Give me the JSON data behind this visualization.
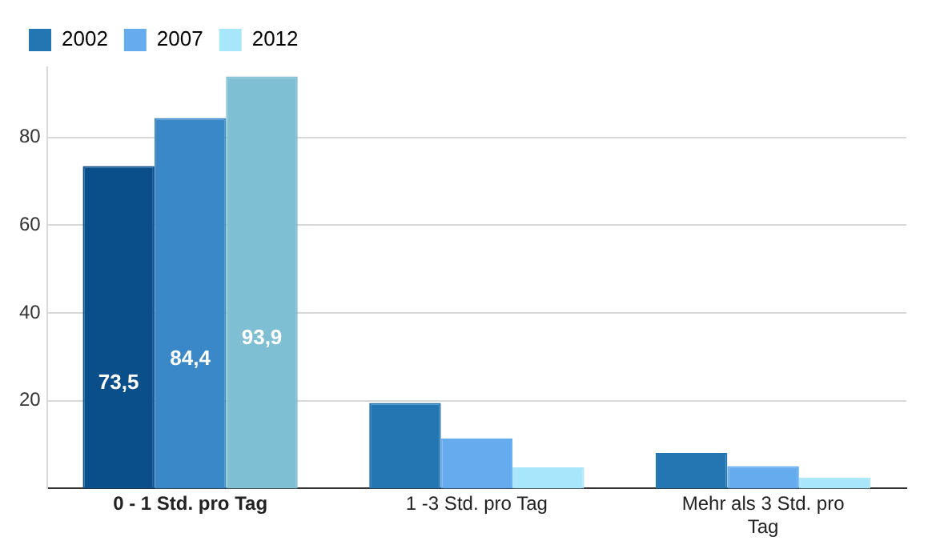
{
  "chart_data": {
    "type": "bar",
    "categories": [
      "0 - 1 Std. pro Tag",
      "1 -3 Std. pro Tag",
      "Mehr als 3 Std. pro Tag"
    ],
    "series": [
      {
        "name": "2002",
        "color": "#2476b2",
        "colors": [
          "#0b4f8a",
          "#2476b2",
          "#2476b2"
        ],
        "values": [
          73.5,
          19.5,
          8.1
        ],
        "value_labels": [
          "73,5",
          null,
          null
        ]
      },
      {
        "name": "2007",
        "color": "#64acee",
        "colors": [
          "#3a88c8",
          "#64acee",
          "#64acee"
        ],
        "values": [
          84.4,
          11.4,
          5.1
        ],
        "value_labels": [
          "84,4",
          null,
          null
        ]
      },
      {
        "name": "2012",
        "color": "#a8e6fb",
        "colors": [
          "#7fbfd3",
          "#a8e6fb",
          "#a8e6fb"
        ],
        "values": [
          93.9,
          4.8,
          2.5
        ],
        "value_labels": [
          "93,9",
          null,
          null
        ]
      }
    ],
    "ylim": [
      0,
      96
    ],
    "yticks": [
      20,
      40,
      60,
      80
    ],
    "grid": "y",
    "legend": "top left"
  }
}
